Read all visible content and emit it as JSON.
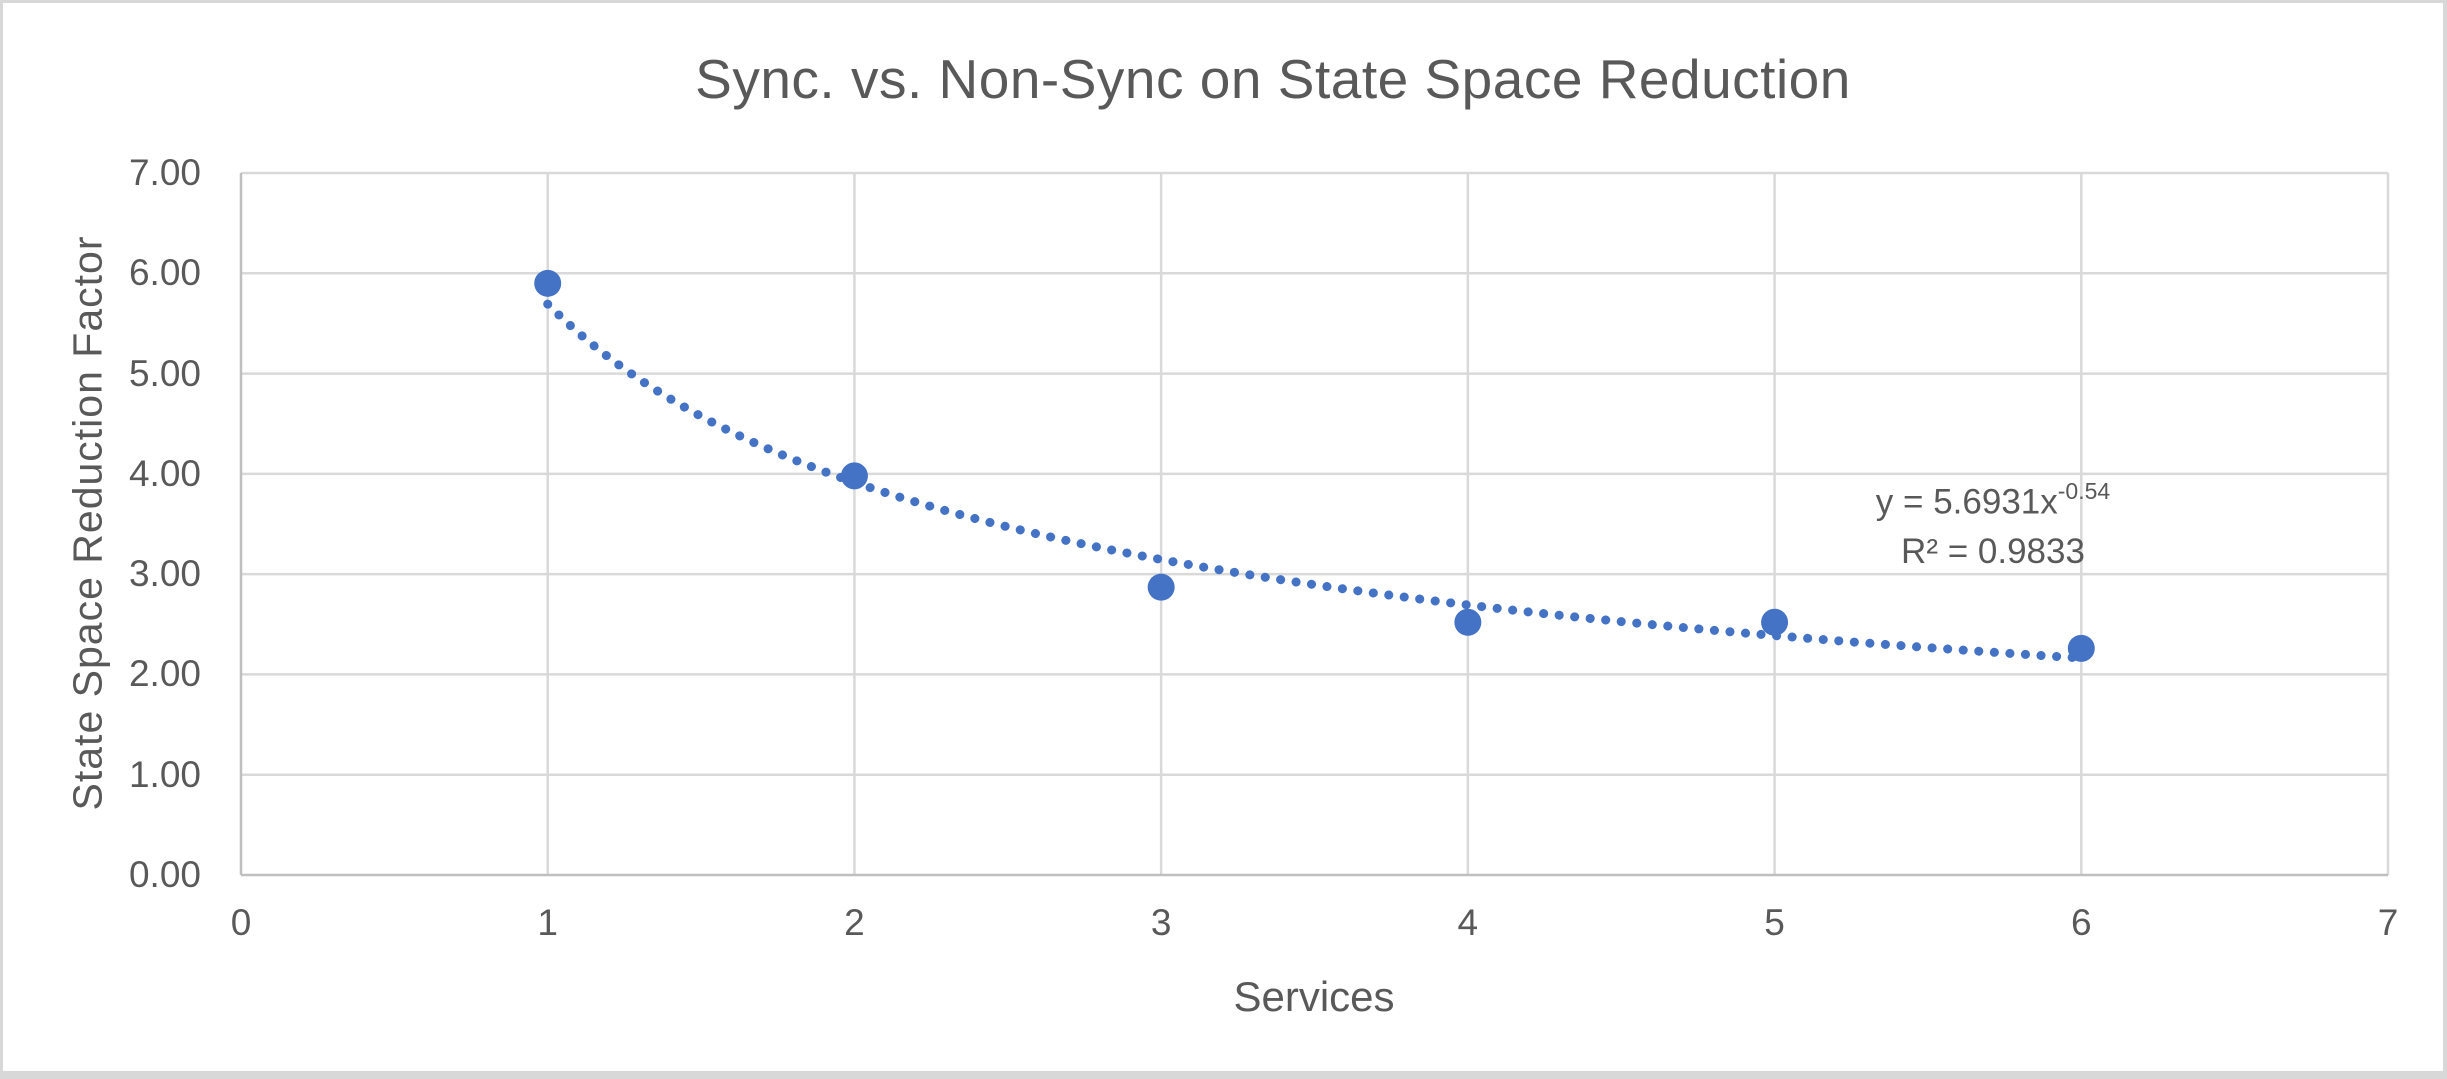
{
  "chart_data": {
    "type": "scatter",
    "title": "Sync. vs. Non-Sync on State Space Reduction",
    "xlabel": "Services",
    "ylabel": "State Space Reduction Factor",
    "x": [
      1,
      2,
      3,
      4,
      5,
      6
    ],
    "y": [
      5.9,
      3.98,
      2.87,
      2.52,
      2.52,
      2.26
    ],
    "xlim": [
      0,
      7
    ],
    "ylim": [
      0,
      7
    ],
    "x_ticks": [
      "0",
      "1",
      "2",
      "3",
      "4",
      "5",
      "6",
      "7"
    ],
    "y_ticks": [
      "0.00",
      "1.00",
      "2.00",
      "3.00",
      "4.00",
      "5.00",
      "6.00",
      "7.00"
    ],
    "grid": true,
    "legend": false,
    "marker_color": "#4472C4",
    "trendline_color": "#4472C4",
    "gridline_color": "#d9d9d9",
    "axis_line_color": "#bfbfbf",
    "text_color": "#595959",
    "trendline": {
      "type": "power",
      "coefficient": 5.6931,
      "exponent": -0.54,
      "x_start": 1,
      "x_end": 6,
      "style": "dotted",
      "equation_base": "y = 5.6931x",
      "equation_exponent": "-0.54",
      "r_squared": "R² = 0.9833"
    }
  }
}
